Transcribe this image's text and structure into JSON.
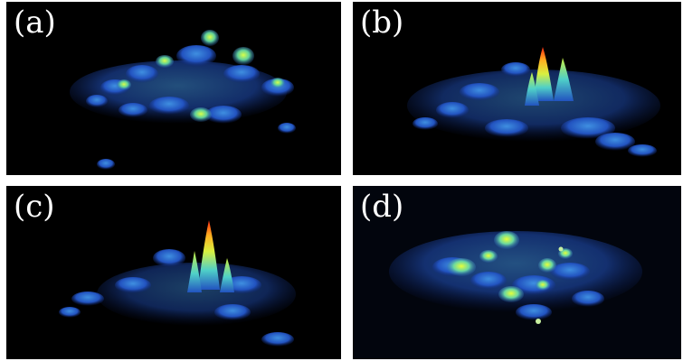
{
  "panels": [
    {
      "id": "a",
      "label": "(a)"
    },
    {
      "id": "b",
      "label": "(b)"
    },
    {
      "id": "c",
      "label": "(c)"
    },
    {
      "id": "d",
      "label": "(d)"
    }
  ],
  "colormap": {
    "low": "#1a3a9c",
    "mid_low": "#2f7fd6",
    "mid": "#4fd0c8",
    "mid_high": "#c8f040",
    "high": "#ffd21c",
    "peak": "#ff2a10"
  }
}
